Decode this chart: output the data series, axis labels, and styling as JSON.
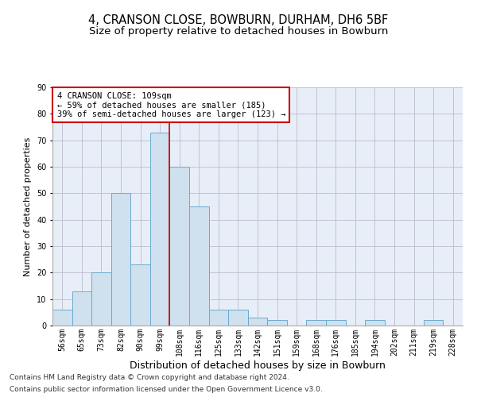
{
  "title": "4, CRANSON CLOSE, BOWBURN, DURHAM, DH6 5BF",
  "subtitle": "Size of property relative to detached houses in Bowburn",
  "xlabel": "Distribution of detached houses by size in Bowburn",
  "ylabel": "Number of detached properties",
  "categories": [
    "56sqm",
    "65sqm",
    "73sqm",
    "82sqm",
    "90sqm",
    "99sqm",
    "108sqm",
    "116sqm",
    "125sqm",
    "133sqm",
    "142sqm",
    "151sqm",
    "159sqm",
    "168sqm",
    "176sqm",
    "185sqm",
    "194sqm",
    "202sqm",
    "211sqm",
    "219sqm",
    "228sqm"
  ],
  "values": [
    6,
    13,
    20,
    50,
    23,
    73,
    60,
    45,
    6,
    6,
    3,
    2,
    0,
    2,
    2,
    0,
    2,
    0,
    0,
    2,
    0
  ],
  "bar_color": "#cfe0ee",
  "bar_edge_color": "#6aabcf",
  "vline_color": "#cc0000",
  "vline_x": 5.5,
  "ylim": [
    0,
    90
  ],
  "yticks": [
    0,
    10,
    20,
    30,
    40,
    50,
    60,
    70,
    80,
    90
  ],
  "annotation_text": "4 CRANSON CLOSE: 109sqm\n← 59% of detached houses are smaller (185)\n39% of semi-detached houses are larger (123) →",
  "annotation_box_color": "#cc0000",
  "footer1": "Contains HM Land Registry data © Crown copyright and database right 2024.",
  "footer2": "Contains public sector information licensed under the Open Government Licence v3.0.",
  "background_color": "#e8eef8",
  "grid_color": "#bbbbcc",
  "title_fontsize": 10.5,
  "subtitle_fontsize": 9.5,
  "xlabel_fontsize": 9,
  "ylabel_fontsize": 8,
  "tick_fontsize": 7,
  "annotation_fontsize": 7.5,
  "footer_fontsize": 6.5
}
